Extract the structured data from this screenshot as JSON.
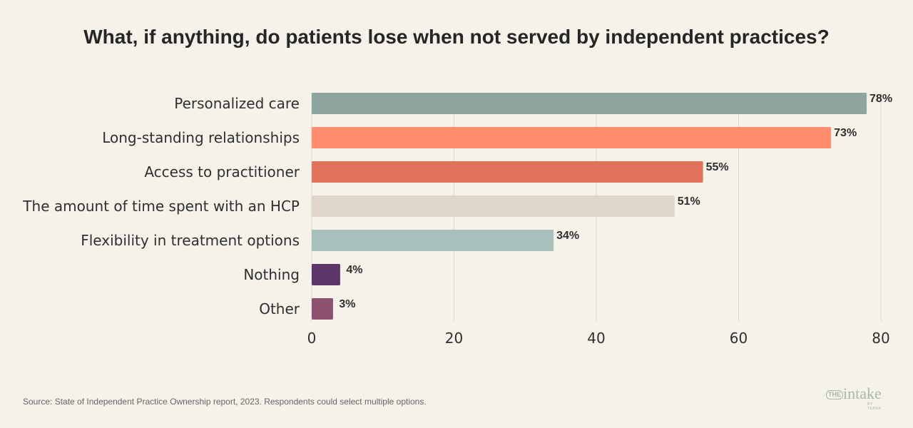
{
  "title": "What, if anything, do patients lose when not served by independent practices?",
  "chart_data": {
    "type": "bar",
    "orientation": "horizontal",
    "categories": [
      "Personalized care",
      "Long-standing relationships",
      "Access to practitioner",
      "The amount of time spent with an HCP",
      "Flexibility in treatment options",
      "Nothing",
      "Other"
    ],
    "values": [
      78,
      73,
      55,
      51,
      34,
      4,
      3
    ],
    "data_labels": [
      "78%",
      "73%",
      "55%",
      "51%",
      "34%",
      "4%",
      "3%"
    ],
    "colors": [
      "#8ea59f",
      "#ff8c6e",
      "#e0735a",
      "#e0d5ca",
      "#a8c0bb",
      "#5c3569",
      "#8c5270"
    ],
    "xlim": [
      0,
      80
    ],
    "xticks": [
      0,
      20,
      40,
      60,
      80
    ],
    "xtick_labels": [
      "0",
      "20",
      "40",
      "60",
      "80"
    ],
    "xlabel": "",
    "ylabel": "",
    "grid": "vertical"
  },
  "source": "Source: State of Independent Practice Ownership report, 2023. Respondents could select multiple options.",
  "logo": {
    "prefix": "THE",
    "word": "intake",
    "sub": "BY TEBRA"
  }
}
